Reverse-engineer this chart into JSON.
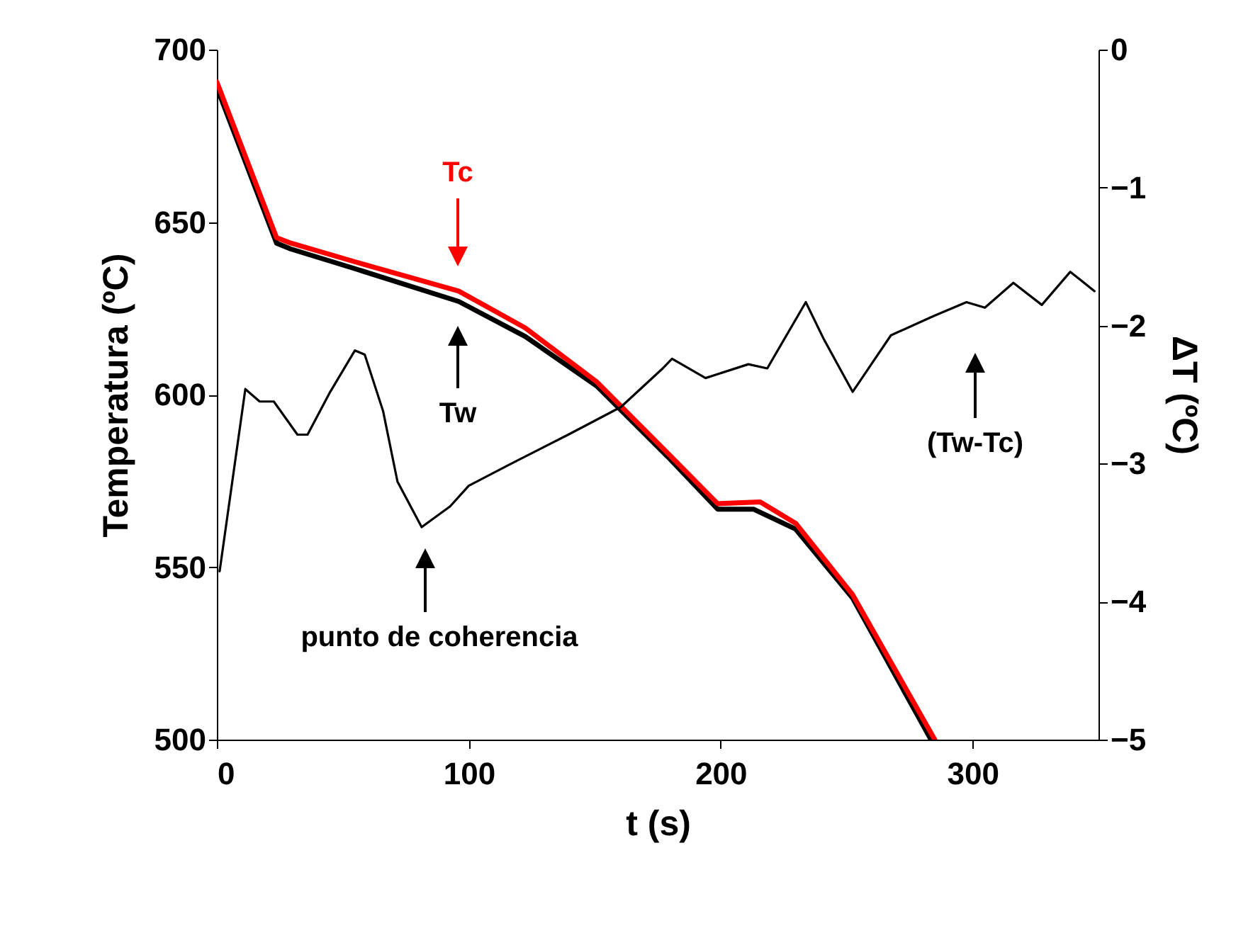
{
  "chart_data": {
    "type": "line",
    "xlabel": "t (s)",
    "ylabel": "Temperatura (ºC)",
    "y2label": "ΔT (ºC)",
    "xlim": [
      0,
      350
    ],
    "xticks": [
      0,
      100,
      200,
      300
    ],
    "ylim": [
      500,
      700
    ],
    "yticks": [
      500,
      550,
      600,
      650,
      700
    ],
    "y2lim": [
      -5,
      0
    ],
    "y2ticks": [
      -5,
      -4,
      -3,
      -2,
      -1,
      0
    ],
    "grid": false,
    "series": [
      {
        "color": "#ff0000",
        "x": [
          0,
          23.7,
          29.4,
          54.8,
          96,
          122.5,
          150.8,
          179,
          198.8,
          215.7,
          229.8,
          252.4,
          285
        ],
        "values": [
          690.6,
          645.5,
          643.9,
          638.5,
          630,
          619.3,
          603.7,
          583,
          568.4,
          568.9,
          562.7,
          542,
          500
        ]
      },
      {
        "color": "#000000",
        "x": [
          0,
          23.7,
          29.4,
          54.8,
          96,
          122.5,
          150.8,
          179,
          198.8,
          213,
          229.8,
          252.4,
          283.5
        ],
        "values": [
          689,
          643.9,
          642.2,
          636.5,
          627,
          616.8,
          602.5,
          582,
          566.8,
          566.8,
          561,
          541,
          500
        ]
      },
      {
        "color": "#000000",
        "axis": "y2",
        "x": [
          1.1,
          11.3,
          17,
          22.6,
          32,
          36,
          45,
          54.8,
          58.7,
          66,
          71.7,
          81.3,
          92.6,
          100,
          116.9,
          139.5,
          160.4,
          177,
          180.7,
          194,
          211,
          218.5,
          233.8,
          241,
          252.4,
          267.6,
          284.6,
          297.6,
          304.9,
          316.2,
          327.5,
          338.8,
          348.4
        ],
        "values": [
          -3.78,
          -2.46,
          -2.55,
          -2.55,
          -2.79,
          -2.79,
          -2.48,
          -2.18,
          -2.21,
          -2.62,
          -3.13,
          -3.46,
          -3.31,
          -3.16,
          -3.0,
          -2.79,
          -2.59,
          -2.31,
          -2.24,
          -2.38,
          -2.28,
          -2.31,
          -1.83,
          -2.1,
          -2.48,
          -2.07,
          -1.93,
          -1.83,
          -1.87,
          -1.69,
          -1.85,
          -1.61,
          -1.75
        ]
      }
    ],
    "annotations": [
      "Tc",
      "Tw",
      "(Tw-Tc)",
      "punto de coherencia"
    ]
  }
}
